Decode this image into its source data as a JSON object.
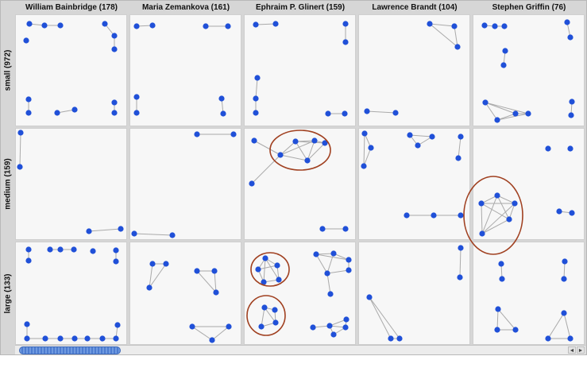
{
  "columns": [
    {
      "label": "William Bainbridge (178)"
    },
    {
      "label": "Maria Zemankova (161)"
    },
    {
      "label": "Ephraim P. Glinert (159)"
    },
    {
      "label": "Lawrence Brandt (104)"
    },
    {
      "label": "Stephen Griffin (76)"
    }
  ],
  "rows": [
    {
      "label": "small (972)"
    },
    {
      "label": "medium (159)"
    },
    {
      "label": "large (133)"
    }
  ],
  "colors": {
    "node": "#2050d8",
    "edge": "#aaaaaa",
    "highlight": "#a04020"
  },
  "scrollbar": {
    "left_icon": "◄",
    "right_icon": "►"
  }
}
